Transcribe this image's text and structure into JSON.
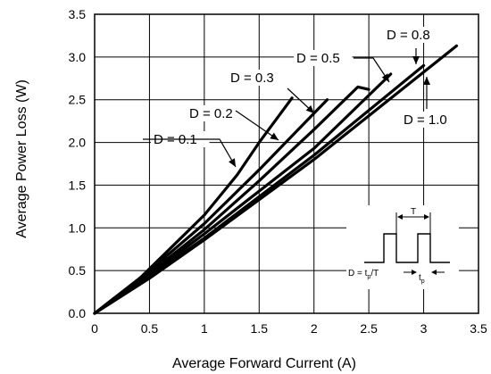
{
  "chart_data": {
    "type": "line",
    "title": "",
    "xlabel": "Average Forward Current (A)",
    "ylabel": "Average Power Loss (W)",
    "xlim": [
      0,
      3.5
    ],
    "ylim": [
      0,
      3.5
    ],
    "x_ticks": [
      "0",
      "0.5",
      "1",
      "1.5",
      "2",
      "2.5",
      "3",
      "3.5"
    ],
    "y_ticks": [
      "0.0",
      "0.5",
      "1.0",
      "1.5",
      "2.0",
      "2.5",
      "3.0",
      "3.5"
    ],
    "grid": true,
    "series": [
      {
        "name": "D = 0.1",
        "x": [
          0,
          0.3,
          0.5,
          1.0,
          1.3,
          1.5,
          1.8
        ],
        "y": [
          0,
          0.27,
          0.52,
          1.15,
          1.62,
          2.0,
          2.52
        ]
      },
      {
        "name": "D = 0.2",
        "x": [
          0,
          0.5,
          1.0,
          1.5,
          2.12
        ],
        "y": [
          0,
          0.5,
          1.05,
          1.68,
          2.5
        ]
      },
      {
        "name": "D = 0.3",
        "x": [
          0,
          0.5,
          1.0,
          1.5,
          2.0,
          2.4,
          2.5
        ],
        "y": [
          0,
          0.47,
          0.98,
          1.55,
          2.15,
          2.65,
          2.62
        ]
      },
      {
        "name": "D = 0.5",
        "x": [
          0,
          0.5,
          1.0,
          2.0,
          2.7
        ],
        "y": [
          0,
          0.45,
          0.93,
          1.93,
          2.8
        ]
      },
      {
        "name": "D = 0.8",
        "x": [
          0,
          0.5,
          1.0,
          2.0,
          3.0
        ],
        "y": [
          0,
          0.43,
          0.88,
          1.85,
          2.9
        ]
      },
      {
        "name": "D = 1.0",
        "x": [
          0,
          0.5,
          1.0,
          2.0,
          3.3
        ],
        "y": [
          0,
          0.41,
          0.86,
          1.8,
          3.13
        ]
      }
    ],
    "annotations": {
      "inset_T": "T",
      "inset_D": "D = t",
      "inset_D_sub": "p",
      "inset_D_tail": "/T",
      "inset_tp": "t",
      "inset_tp_sub": "p"
    }
  }
}
